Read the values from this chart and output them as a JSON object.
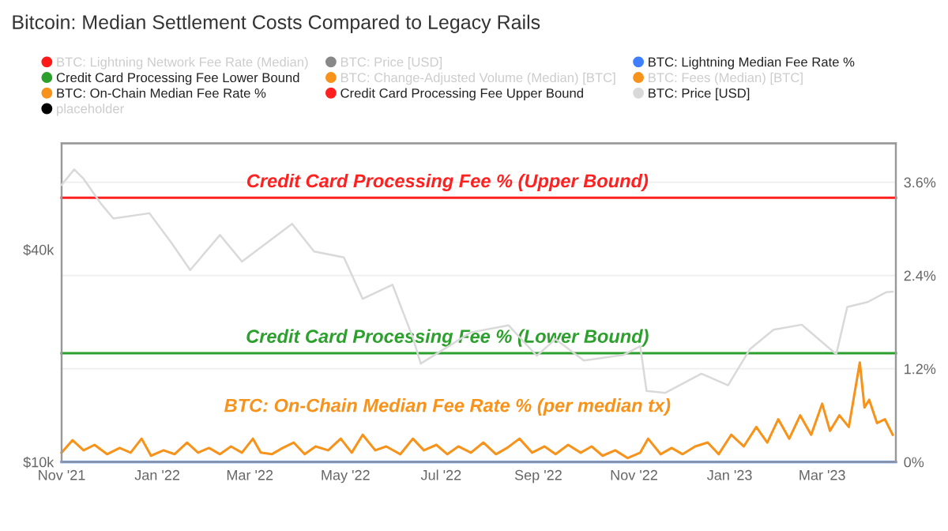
{
  "chart_data": {
    "type": "line",
    "title": "Bitcoin: Median Settlement Costs Compared to Legacy Rails",
    "log": "y",
    "ylim": [
      10000,
      80000
    ],
    "yticks": [
      {
        "value": 10000,
        "label": "$10k"
      },
      {
        "value": 40000,
        "label": "$40k"
      }
    ],
    "y2lim": [
      0,
      4.1
    ],
    "y2ticks": [
      {
        "value": 0,
        "label": "0%"
      },
      {
        "value": 1.2,
        "label": "1.2%"
      },
      {
        "value": 2.4,
        "label": "2.4%"
      },
      {
        "value": 3.6,
        "label": "3.6%"
      }
    ],
    "xlim": [
      "2021-11-01",
      "2023-04-17"
    ],
    "xticks": [
      {
        "value": "2021-11-01",
        "label": "Nov '21"
      },
      {
        "value": "2022-01-01",
        "label": "Jan '22"
      },
      {
        "value": "2022-03-01",
        "label": "Mar '22"
      },
      {
        "value": "2022-05-01",
        "label": "May '22"
      },
      {
        "value": "2022-07-01",
        "label": "Jul '22"
      },
      {
        "value": "2022-09-01",
        "label": "Sep '22"
      },
      {
        "value": "2022-11-01",
        "label": "Nov '22"
      },
      {
        "value": "2023-01-01",
        "label": "Jan '23"
      },
      {
        "value": "2023-03-01",
        "label": "Mar '23"
      }
    ],
    "grid": "y",
    "legend": "top left",
    "series": [
      {
        "name": "BTC: Lightning Network Fee Rate (Median)",
        "color": "#ff1a1a"
      },
      {
        "name": "BTC: Price [USD]",
        "color": "#888888"
      },
      {
        "name": "BTC: Lightning Median Fee Rate %",
        "color": "#3d7fff",
        "axis": "y2",
        "x": [
          "2021-11-01",
          "2023-04-17"
        ],
        "values": [
          0,
          0
        ]
      },
      {
        "name": "Credit Card Processing Fee Lower Bound",
        "color": "#2ca02c",
        "axis": "y2",
        "x": [
          "2021-11-01",
          "2023-04-17"
        ],
        "values": [
          1.4,
          1.4
        ]
      },
      {
        "name": "BTC: Change-Adjusted Volume (Median) [BTC]",
        "color": "#f7931a"
      },
      {
        "name": "BTC: Fees (Median) [BTC]",
        "color": "#f7931a"
      },
      {
        "name": "BTC: On-Chain Median Fee Rate %",
        "color": "#f7931a",
        "axis": "y2",
        "x": [
          "2021-11-01",
          "2021-11-08",
          "2021-11-15",
          "2021-11-22",
          "2021-11-30",
          "2021-12-08",
          "2021-12-15",
          "2021-12-22",
          "2021-12-28",
          "2022-01-05",
          "2022-01-12",
          "2022-01-20",
          "2022-01-27",
          "2022-02-03",
          "2022-02-10",
          "2022-02-17",
          "2022-02-24",
          "2022-03-03",
          "2022-03-08",
          "2022-03-15",
          "2022-03-22",
          "2022-03-29",
          "2022-04-05",
          "2022-04-12",
          "2022-04-20",
          "2022-04-28",
          "2022-05-05",
          "2022-05-12",
          "2022-05-20",
          "2022-05-27",
          "2022-06-05",
          "2022-06-13",
          "2022-06-20",
          "2022-06-28",
          "2022-07-05",
          "2022-07-12",
          "2022-07-20",
          "2022-07-28",
          "2022-08-05",
          "2022-08-12",
          "2022-08-20",
          "2022-08-28",
          "2022-09-05",
          "2022-09-12",
          "2022-09-20",
          "2022-09-28",
          "2022-10-05",
          "2022-10-12",
          "2022-10-20",
          "2022-10-28",
          "2022-11-05",
          "2022-11-10",
          "2022-11-18",
          "2022-11-25",
          "2022-12-02",
          "2022-12-10",
          "2022-12-18",
          "2022-12-25",
          "2023-01-02",
          "2023-01-10",
          "2023-01-18",
          "2023-01-25",
          "2023-02-01",
          "2023-02-08",
          "2023-02-15",
          "2023-02-22",
          "2023-03-01",
          "2023-03-06",
          "2023-03-12",
          "2023-03-18",
          "2023-03-25",
          "2023-03-28",
          "2023-03-31",
          "2023-04-05",
          "2023-04-10",
          "2023-04-15"
        ],
        "values": [
          0.12,
          0.28,
          0.15,
          0.22,
          0.1,
          0.18,
          0.12,
          0.3,
          0.08,
          0.15,
          0.1,
          0.25,
          0.12,
          0.18,
          0.1,
          0.2,
          0.12,
          0.3,
          0.12,
          0.1,
          0.18,
          0.25,
          0.1,
          0.2,
          0.15,
          0.3,
          0.12,
          0.35,
          0.15,
          0.2,
          0.1,
          0.3,
          0.15,
          0.22,
          0.1,
          0.2,
          0.12,
          0.25,
          0.1,
          0.18,
          0.3,
          0.12,
          0.2,
          0.1,
          0.22,
          0.12,
          0.2,
          0.08,
          0.15,
          0.05,
          0.12,
          0.3,
          0.1,
          0.18,
          0.1,
          0.2,
          0.25,
          0.1,
          0.35,
          0.2,
          0.45,
          0.25,
          0.55,
          0.3,
          0.6,
          0.35,
          0.75,
          0.4,
          0.6,
          0.45,
          1.28,
          0.7,
          0.8,
          0.5,
          0.55,
          0.35
        ]
      },
      {
        "name": "Credit Card Processing Fee Upper Bound",
        "color": "#ff2020",
        "axis": "y2",
        "x": [
          "2021-11-01",
          "2023-04-17"
        ],
        "values": [
          3.4,
          3.4
        ]
      },
      {
        "name": "BTC: Price [USD]",
        "color": "#d9d9d9",
        "x": [
          "2021-11-01",
          "2021-11-09",
          "2021-11-15",
          "2021-11-26",
          "2021-12-04",
          "2021-12-27",
          "2022-01-10",
          "2022-01-22",
          "2022-02-10",
          "2022-02-24",
          "2022-03-28",
          "2022-04-11",
          "2022-04-30",
          "2022-05-12",
          "2022-05-31",
          "2022-06-13",
          "2022-06-18",
          "2022-07-20",
          "2022-08-13",
          "2022-08-31",
          "2022-09-12",
          "2022-09-30",
          "2022-10-25",
          "2022-11-05",
          "2022-11-09",
          "2022-11-21",
          "2022-12-14",
          "2022-12-31",
          "2023-01-14",
          "2023-01-29",
          "2023-02-16",
          "2023-03-10",
          "2023-03-17",
          "2023-03-30",
          "2023-04-11",
          "2023-04-15"
        ],
        "values": [
          61000,
          67500,
          63500,
          54000,
          49000,
          50700,
          41800,
          35000,
          44000,
          37000,
          47300,
          39500,
          38000,
          29000,
          31800,
          22500,
          19000,
          23300,
          24400,
          20000,
          22300,
          19400,
          20100,
          21300,
          15900,
          15700,
          17800,
          16500,
          20900,
          23700,
          24500,
          20200,
          27500,
          28400,
          30300,
          30400
        ]
      },
      {
        "name": "placeholder",
        "color": "#000000"
      }
    ],
    "annotations": [
      "Credit Card Processing Fee % (Upper Bound)",
      "Credit Card Processing Fee % (Lower Bound)",
      "BTC: On-Chain Median Fee Rate % (per median tx)"
    ]
  }
}
